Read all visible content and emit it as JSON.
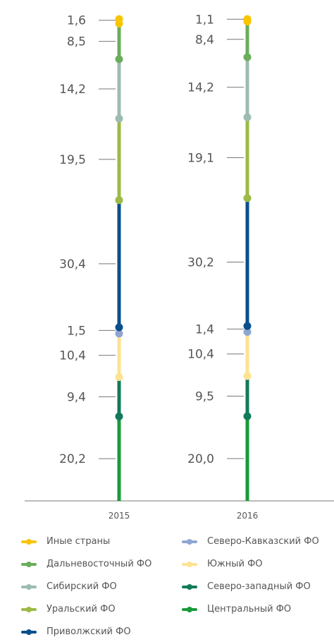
{
  "chart_data": {
    "type": "bar",
    "stacked": true,
    "categories": [
      "2015",
      "2016"
    ],
    "series": [
      {
        "name": "Центральный ФО",
        "color": "#1a9a3a",
        "values": [
          20.2,
          20.0
        ],
        "labels": [
          "20,2",
          "20,0"
        ]
      },
      {
        "name": "Северо-западный ФО",
        "color": "#127a5a",
        "values": [
          9.4,
          9.5
        ],
        "labels": [
          "9,4",
          "9,5"
        ]
      },
      {
        "name": "Южный ФО",
        "color": "#fde292",
        "values": [
          10.4,
          10.4
        ],
        "labels": [
          "10,4",
          "10,4"
        ]
      },
      {
        "name": "Северо-Кавказский ФО",
        "color": "#8ea6d2",
        "values": [
          1.5,
          1.4
        ],
        "labels": [
          "1,5",
          "1,4"
        ]
      },
      {
        "name": "Приволжский ФО",
        "color": "#0a4f8c",
        "values": [
          30.4,
          30.2
        ],
        "labels": [
          "30,4",
          "30,2"
        ]
      },
      {
        "name": "Уральский ФО",
        "color": "#9cba45",
        "values": [
          19.5,
          19.1
        ],
        "labels": [
          "19,5",
          "19,1"
        ]
      },
      {
        "name": "Сибирский ФО",
        "color": "#9cbcb0",
        "values": [
          14.2,
          14.2
        ],
        "labels": [
          "14,2",
          "14,2"
        ]
      },
      {
        "name": "Дальневосточный ФО",
        "color": "#6aad5c",
        "values": [
          8.5,
          8.4
        ],
        "labels": [
          "8,5",
          "8,4"
        ]
      },
      {
        "name": "Иные страны",
        "color": "#f9c500",
        "values": [
          1.6,
          1.1
        ],
        "labels": [
          "1,6",
          "1,1"
        ]
      }
    ],
    "legend": {
      "placement": "bottom",
      "left_column": [
        "Иные страны",
        "Дальневосточный ФО",
        "Сибирский ФО",
        "Уральский ФО",
        "Приволжский ФО"
      ],
      "right_column": [
        "Северо-Кавказский ФО",
        "Южный ФО",
        "Северо-западный ФО",
        "Центральный ФО"
      ]
    }
  }
}
